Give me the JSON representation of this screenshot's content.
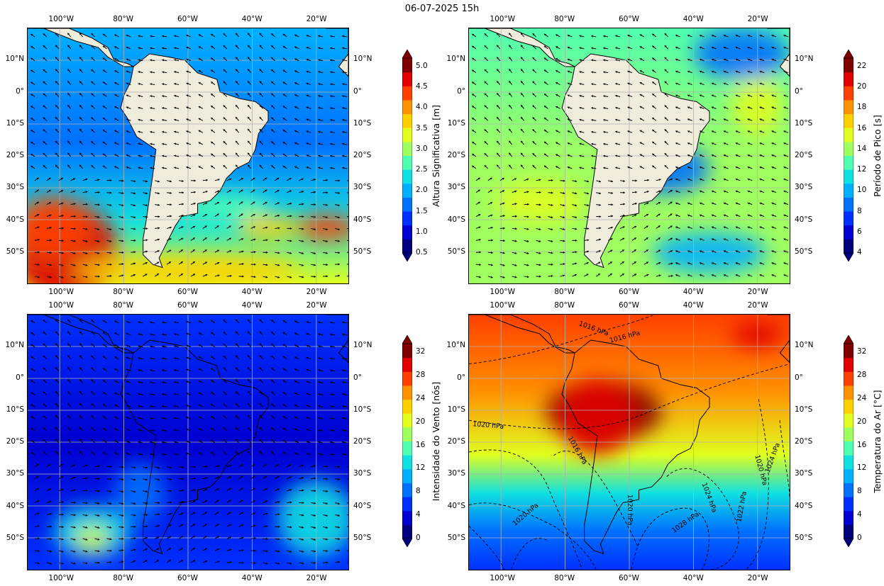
{
  "title": "06-07-2025 15h",
  "lon_labels": [
    "100°W",
    "80°W",
    "60°W",
    "40°W",
    "20°W"
  ],
  "lat_labels": [
    "10°N",
    "0°",
    "10°S",
    "20°S",
    "30°S",
    "40°S",
    "50°S"
  ],
  "colors": {
    "land": "#efecdc",
    "grid": "#b0b0b0",
    "jet": [
      "#00007f",
      "#0000d0",
      "#0030ff",
      "#0070ff",
      "#00b0ff",
      "#10e0e0",
      "#50ffb0",
      "#a0ff60",
      "#e0ff20",
      "#ffd000",
      "#ff9000",
      "#ff4000",
      "#e00000",
      "#800000"
    ]
  },
  "panels": [
    {
      "id": "wave-height",
      "variable": "Altura Significativa [m]",
      "colorbar_ticks": [
        "0.5",
        "1.0",
        "1.5",
        "2.0",
        "2.5",
        "3.0",
        "3.5",
        "4.0",
        "4.5",
        "5.0"
      ],
      "overlay": "arrows"
    },
    {
      "id": "peak-period",
      "variable": "Período de Pico [s]",
      "colorbar_ticks": [
        "4",
        "6",
        "8",
        "10",
        "12",
        "14",
        "16",
        "18",
        "20",
        "22"
      ],
      "overlay": "arrows"
    },
    {
      "id": "wind-speed",
      "variable": "Intensidade do Vento [nós]",
      "colorbar_ticks": [
        "0",
        "4",
        "8",
        "12",
        "16",
        "20",
        "24",
        "28",
        "32"
      ],
      "overlay": "arrows"
    },
    {
      "id": "air-temperature",
      "variable": "Temperatura do Ar [°C]",
      "colorbar_ticks": [
        "0",
        "4",
        "8",
        "12",
        "16",
        "20",
        "24",
        "28",
        "32"
      ],
      "overlay": "isobars"
    }
  ],
  "isobar_labels": [
    "1016 hPa",
    "1016 hPa",
    "1020 hPa",
    "1016 hPa",
    "1020 hPa",
    "1024 hPa",
    "1028 hPa",
    "1020 hPa",
    "1024 hPa",
    "1022 hPa",
    "1020 hPa"
  ]
}
